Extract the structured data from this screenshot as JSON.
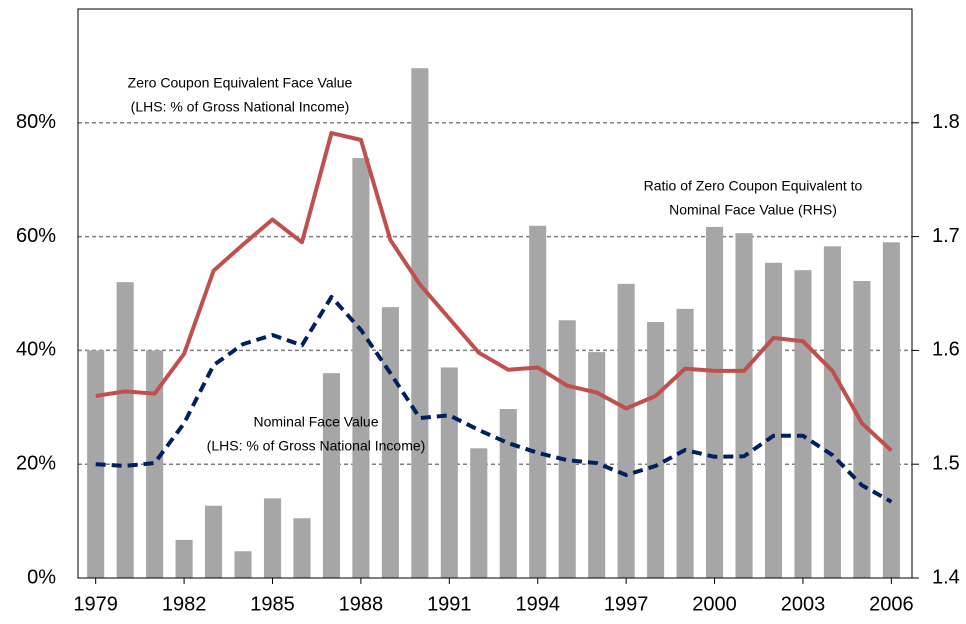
{
  "chart_data": {
    "type": "bar_line",
    "x": [
      1979,
      1980,
      1981,
      1982,
      1983,
      1984,
      1985,
      1986,
      1987,
      1988,
      1989,
      1990,
      1991,
      1992,
      1993,
      1994,
      1995,
      1996,
      1997,
      1998,
      1999,
      2000,
      2001,
      2002,
      2003,
      2004,
      2005,
      2006
    ],
    "xlim": [
      1978.4,
      2006.7
    ],
    "xticks": [
      1979,
      1982,
      1985,
      1988,
      1991,
      1994,
      1997,
      2000,
      2003,
      2006
    ],
    "ylim": [
      0,
      100
    ],
    "yticks": [
      {
        "value": 0,
        "label": "0%"
      },
      {
        "value": 20,
        "label": "20%"
      },
      {
        "value": 40,
        "label": "40%"
      },
      {
        "value": 60,
        "label": "60%"
      },
      {
        "value": 80,
        "label": "80%"
      }
    ],
    "y2lim": [
      1.4,
      1.9
    ],
    "y2ticks": [
      1.4,
      1.5,
      1.6,
      1.7,
      1.8
    ],
    "grid": true,
    "series": [
      {
        "type": "bar",
        "color": "#a6a6a6",
        "values": [
          40,
          52,
          40,
          6.7,
          12.7,
          4.7,
          14,
          10.5,
          36,
          73.8,
          47.6,
          89.6,
          37,
          22.8,
          29.7,
          61.9,
          45.3,
          39.7,
          51.7,
          45,
          47.3,
          61.7,
          60.6,
          55.4,
          54.1,
          58.3,
          52.2,
          59
        ]
      },
      {
        "type": "line",
        "axis": "y2",
        "color": "#c0504d",
        "values": [
          1.56,
          1.564,
          1.562,
          1.597,
          1.67,
          1.693,
          1.715,
          1.695,
          1.791,
          1.785,
          1.697,
          1.658,
          1.628,
          1.598,
          1.583,
          1.585,
          1.569,
          1.563,
          1.549,
          1.56,
          1.584,
          1.582,
          1.582,
          1.611,
          1.608,
          1.582,
          1.536,
          1.512
        ]
      },
      {
        "type": "dashed-line",
        "color": "#002060",
        "values": [
          20,
          19.7,
          20.2,
          27.2,
          37.4,
          41.1,
          42.7,
          40.9,
          49.4,
          43.6,
          36,
          28.1,
          28.6,
          26,
          23.7,
          22,
          20.7,
          20.2,
          18.1,
          19.7,
          22.5,
          21.3,
          21.4,
          25,
          25,
          21.6,
          16.3,
          13.4
        ]
      }
    ],
    "annotations": [
      {
        "lines": [
          "Zero Coupon Equivalent Face  Value",
          "(LHS: % of Gross National Income)"
        ]
      },
      {
        "lines": [
          "Ratio of Zero Coupon Equivalent to",
          "Nominal Face  Value (RHS)"
        ]
      },
      {
        "lines": [
          "Nominal Face  Value",
          "(LHS: % of Gross National Income)"
        ]
      }
    ]
  }
}
